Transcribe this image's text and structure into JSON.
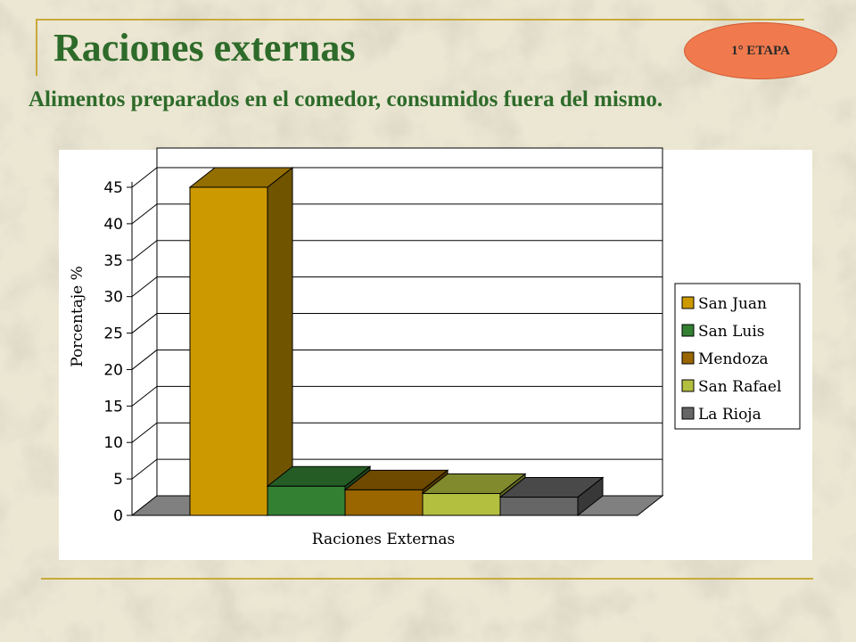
{
  "slide": {
    "title": "Raciones externas",
    "subtitle": "Alimentos preparados en el comedor, consumidos fuera del mismo.",
    "badge": "1° ETAPA"
  },
  "colors": {
    "title": "#2e6b2a",
    "badge": "#f07a4e",
    "frame": "#c9a93a"
  },
  "chart_data": {
    "type": "bar",
    "style": "3d-clustered",
    "categories": [
      "Raciones Externas"
    ],
    "series": [
      {
        "name": "San Juan",
        "values": [
          45
        ],
        "color": "#cc9900"
      },
      {
        "name": "San Luis",
        "values": [
          4
        ],
        "color": "#338033"
      },
      {
        "name": "Mendoza",
        "values": [
          3.5
        ],
        "color": "#996600"
      },
      {
        "name": "San Rafael",
        "values": [
          3
        ],
        "color": "#b3bf3f"
      },
      {
        "name": "La Rioja",
        "values": [
          2.5
        ],
        "color": "#666666"
      }
    ],
    "xlabel": "Raciones Externas",
    "ylabel": "Porcentaje %",
    "ylim": [
      0,
      45
    ],
    "yticks": [
      0,
      5,
      10,
      15,
      20,
      25,
      30,
      35,
      40,
      45
    ],
    "grid": true,
    "legend": "right"
  }
}
